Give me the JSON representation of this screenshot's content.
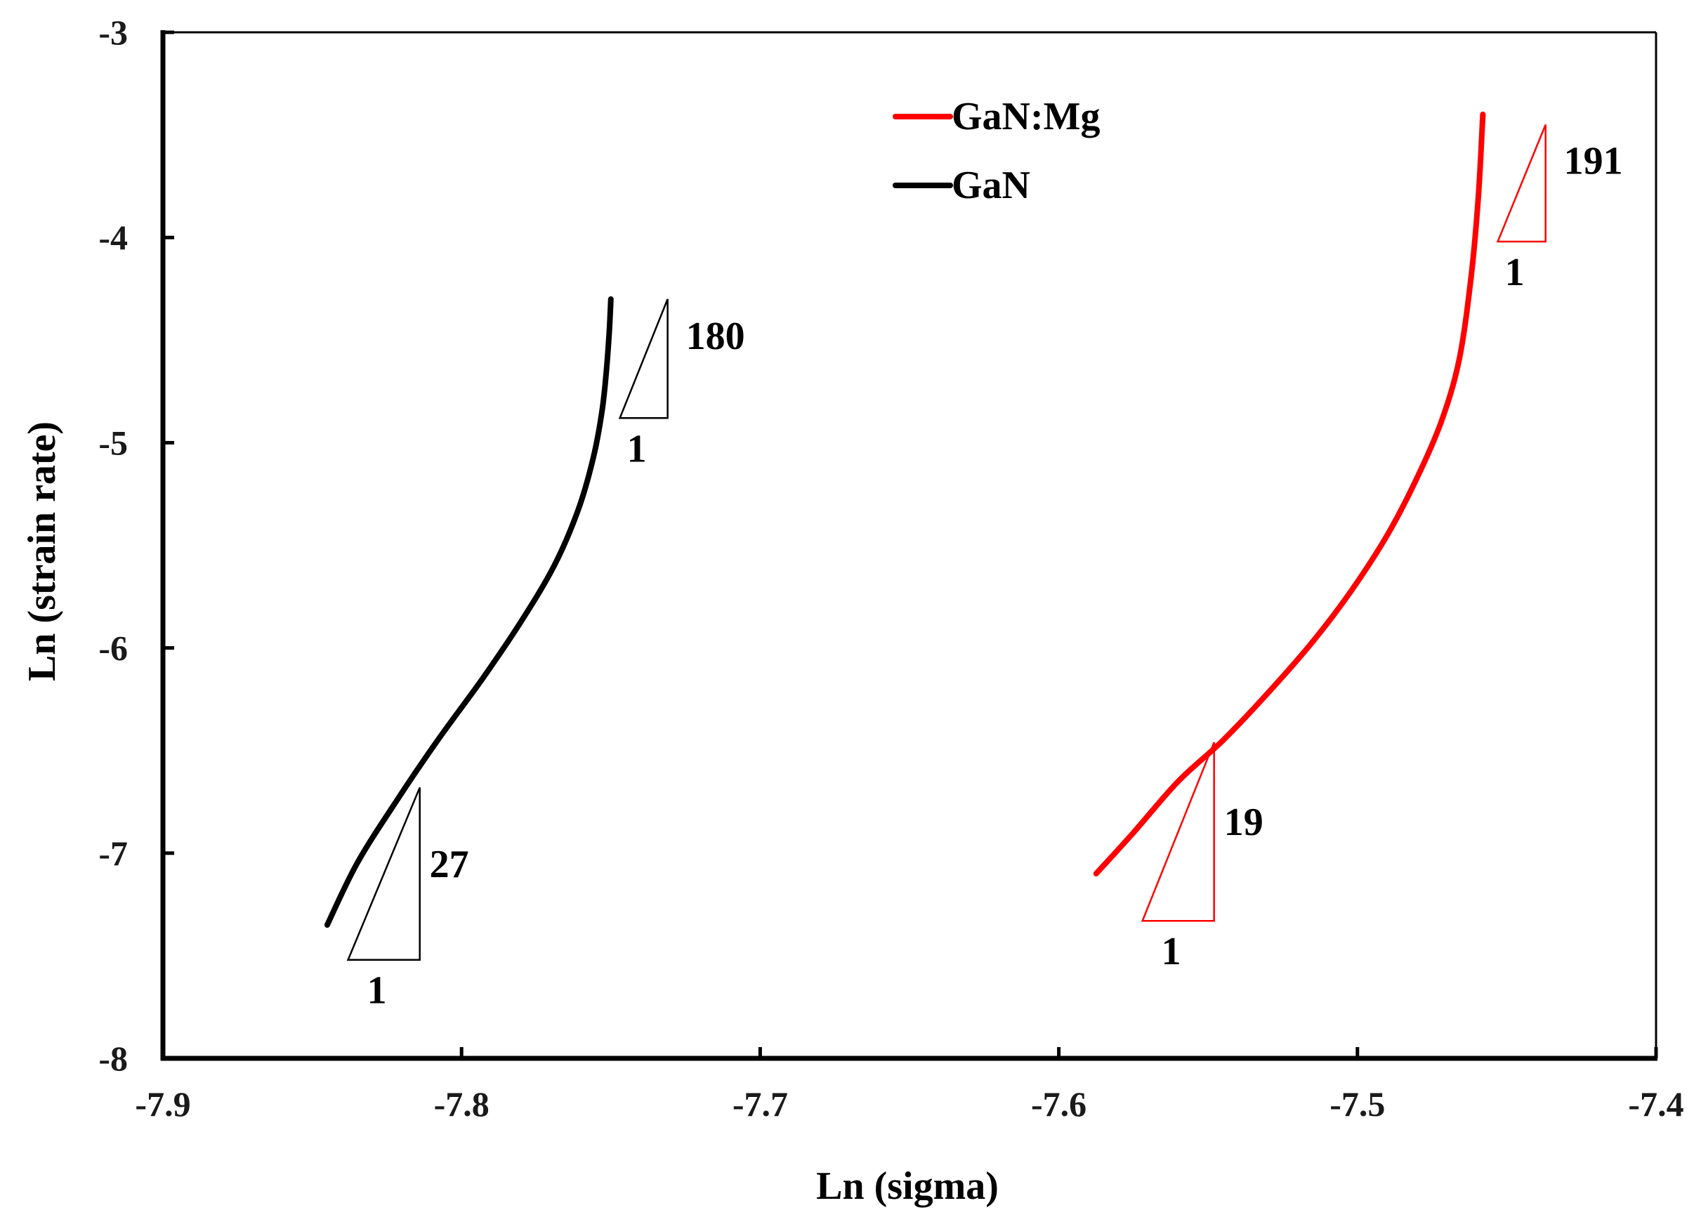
{
  "chart_data": {
    "type": "line",
    "title": "",
    "xlabel": "Ln (sigma)",
    "ylabel": "Ln (strain rate)",
    "xlim": [
      -7.9,
      -7.4
    ],
    "ylim": [
      -8,
      -3
    ],
    "xticks": [
      "-7.9",
      "-7.8",
      "-7.7",
      "-7.6",
      "-7.5",
      "-7.4"
    ],
    "yticks": [
      "-3",
      "-4",
      "-5",
      "-6",
      "-7",
      "-8"
    ],
    "legend_position": "top-center",
    "series": [
      {
        "name": "GaN:Mg",
        "color": "#ff0000",
        "x": [
          -7.5875,
          -7.575,
          -7.56,
          -7.545,
          -7.53,
          -7.515,
          -7.502,
          -7.49,
          -7.48,
          -7.472,
          -7.466,
          -7.462,
          -7.4595,
          -7.458
        ],
        "y": [
          -7.1,
          -6.9,
          -6.65,
          -6.45,
          -6.22,
          -5.97,
          -5.72,
          -5.45,
          -5.17,
          -4.9,
          -4.6,
          -4.2,
          -3.8,
          -3.4
        ]
      },
      {
        "name": "GaN",
        "color": "#000000",
        "x": [
          -7.845,
          -7.835,
          -7.822,
          -7.808,
          -7.793,
          -7.78,
          -7.769,
          -7.761,
          -7.756,
          -7.753,
          -7.7515,
          -7.7505,
          -7.75
        ],
        "y": [
          -7.35,
          -7.05,
          -6.75,
          -6.45,
          -6.15,
          -5.87,
          -5.6,
          -5.33,
          -5.08,
          -4.85,
          -4.65,
          -4.45,
          -4.3
        ]
      }
    ],
    "annotations": [
      {
        "series": "GaN",
        "slope": "27",
        "run": "1",
        "color": "#000000",
        "x0": -7.838,
        "x1": -7.814,
        "y0": -7.52,
        "y1": -6.68
      },
      {
        "series": "GaN",
        "slope": "180",
        "run": "1",
        "color": "#000000",
        "x0": -7.747,
        "x1": -7.731,
        "y0": -4.88,
        "y1": -4.3
      },
      {
        "series": "GaN:Mg",
        "slope": "19",
        "run": "1",
        "color": "#ff0000",
        "x0": -7.572,
        "x1": -7.548,
        "y0": -7.33,
        "y1": -6.46
      },
      {
        "series": "GaN:Mg",
        "slope": "191",
        "run": "1",
        "color": "#ff0000",
        "x0": -7.453,
        "x1": -7.437,
        "y0": -4.02,
        "y1": -3.45
      }
    ]
  }
}
